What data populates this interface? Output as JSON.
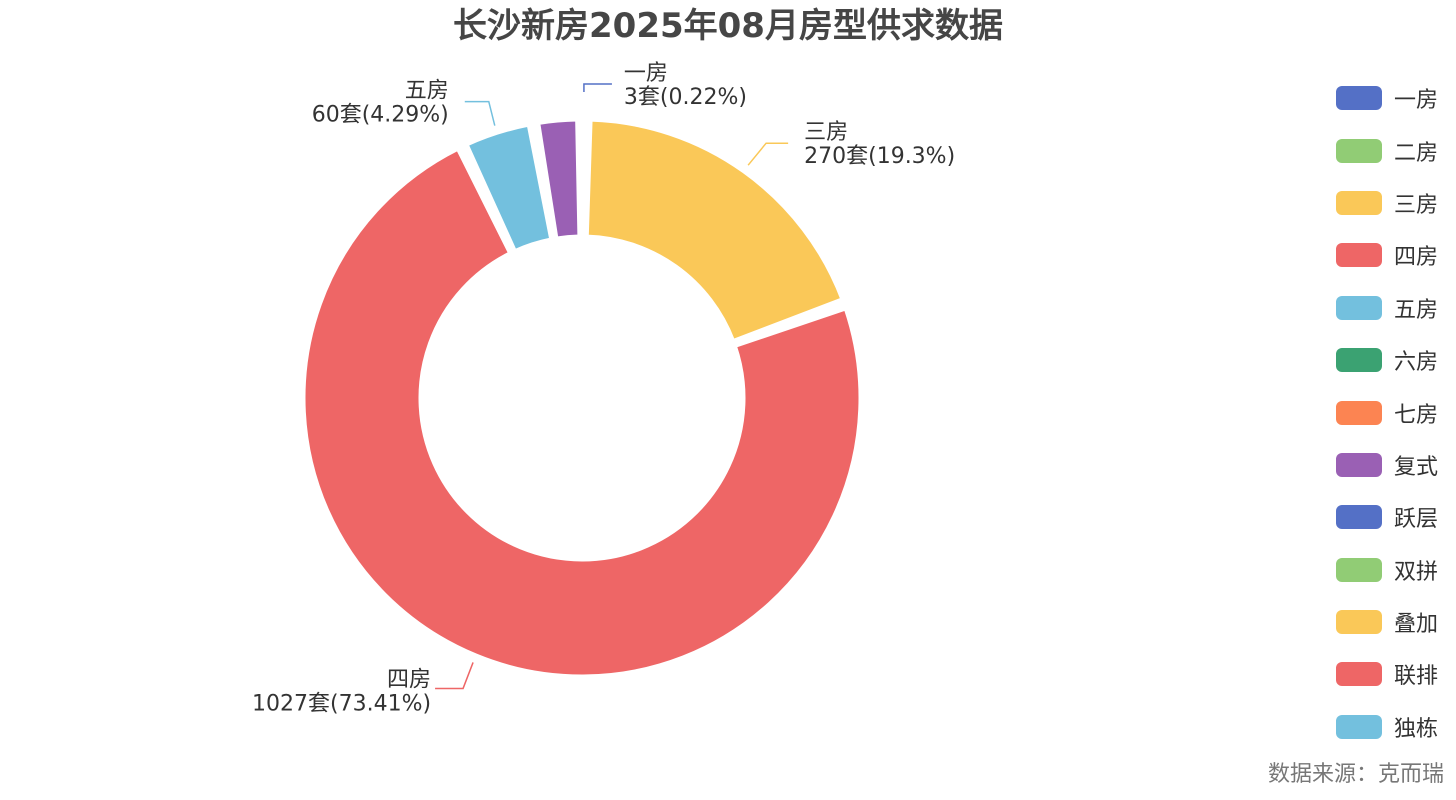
{
  "chart_data": {
    "type": "pie",
    "title": "长沙新房2025年08月房型供求数据",
    "unit": "套",
    "slices": [
      {
        "name": "一房",
        "value": 3,
        "percent": "0.22%",
        "color": "#5470c6"
      },
      {
        "name": "二房",
        "value": 0,
        "percent": "0%",
        "color": "#91cc75"
      },
      {
        "name": "三房",
        "value": 270,
        "percent": "19.3%",
        "color": "#fac858"
      },
      {
        "name": "四房",
        "value": 1027,
        "percent": "73.41%",
        "color": "#ee6666"
      },
      {
        "name": "五房",
        "value": 60,
        "percent": "4.29%",
        "color": "#73c0de"
      },
      {
        "name": "六房",
        "value": 0,
        "percent": "0%",
        "color": "#3ba272"
      },
      {
        "name": "七房",
        "value": 0,
        "percent": "0%",
        "color": "#fc8452"
      },
      {
        "name": "复式",
        "value": 39,
        "percent": "2.79%",
        "color": "#9a60b4"
      },
      {
        "name": "跃层",
        "value": 0,
        "percent": "0%",
        "color": "#5470c6"
      },
      {
        "name": "双拼",
        "value": 0,
        "percent": "0%",
        "color": "#91cc75"
      },
      {
        "name": "叠加",
        "value": 0,
        "percent": "0%",
        "color": "#fac858"
      },
      {
        "name": "联排",
        "value": 0,
        "percent": "0%",
        "color": "#ee6666"
      },
      {
        "name": "独栋",
        "value": 0,
        "percent": "0%",
        "color": "#73c0de"
      }
    ],
    "labeled_slices": [
      {
        "name": "一房",
        "text": "3套(0.22%)"
      },
      {
        "name": "三房",
        "text": "270套(19.3%)"
      },
      {
        "name": "四房",
        "text": "1027套(73.41%)"
      },
      {
        "name": "五房",
        "text": "60套(4.29%)"
      }
    ],
    "legend_position": "right"
  },
  "source_note": "数据来源：克而瑞"
}
